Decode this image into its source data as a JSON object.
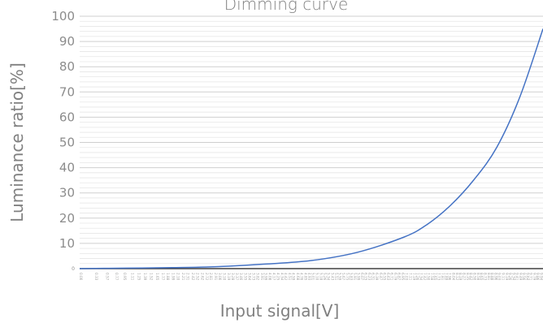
{
  "chart_data": {
    "type": "line",
    "title": "Dimming curve",
    "xlabel": "Input signal[V]",
    "ylabel": "Luminance ratio[%]",
    "ylim": [
      0,
      100
    ],
    "xlim": [
      0.0,
      10.0
    ],
    "y_ticks": [
      "0",
      "10",
      "20",
      "30",
      "40",
      "50",
      "60",
      "70",
      "80",
      "90",
      "100"
    ],
    "x_tick_labels": [
      "0.00",
      "0.33",
      "0.57",
      "0.77",
      "0.95",
      "1.11",
      "1.25",
      "1.39",
      "1.52",
      "1.65",
      "1.77",
      "1.88",
      "1.99",
      "2.10",
      "2.21",
      "2.31",
      "2.42",
      "2.52",
      "2.62",
      "2.72",
      "2.81",
      "2.91",
      "3.00",
      "3.10",
      "3.19",
      "3.28",
      "3.37",
      "3.46",
      "3.55",
      "3.64",
      "3.73",
      "3.82",
      "3.91",
      "3.99",
      "4.08",
      "4.17",
      "4.25",
      "4.34",
      "4.42",
      "4.51",
      "4.59",
      "4.68",
      "4.76",
      "4.85",
      "4.93",
      "5.01",
      "5.10",
      "5.18",
      "5.26",
      "5.34",
      "5.43",
      "5.51",
      "5.59",
      "5.67",
      "5.75",
      "5.83",
      "5.91",
      "5.99",
      "6.07",
      "6.15",
      "6.23",
      "6.31",
      "6.39",
      "6.47",
      "6.55",
      "6.63",
      "6.71",
      "6.79",
      "6.87",
      "6.95",
      "7.03",
      "7.11",
      "7.19",
      "7.26",
      "7.34",
      "7.42",
      "7.50",
      "7.58",
      "7.65",
      "7.73",
      "7.81",
      "7.89",
      "7.96",
      "8.04",
      "8.12",
      "8.19",
      "8.27",
      "8.35",
      "8.42",
      "8.50",
      "8.58",
      "8.65",
      "8.73",
      "8.81",
      "8.88",
      "8.96",
      "9.03",
      "9.11",
      "9.19",
      "9.26",
      "9.34",
      "9.41",
      "9.49",
      "9.56",
      "9.64",
      "9.71",
      "9.79",
      "9.86",
      "9.94",
      "10.00"
    ],
    "grid": "horizontal",
    "series": [
      {
        "color": "#4472c4",
        "x": [
          0.0,
          1.0,
          2.0,
          3.0,
          4.0,
          5.0,
          6.0,
          7.0,
          7.5,
          8.0,
          8.5,
          9.0,
          9.5,
          10.0
        ],
        "y": [
          0.0,
          0.2,
          0.4,
          0.8,
          1.8,
          3.2,
          6.5,
          12.5,
          17.5,
          25.0,
          35.0,
          48.0,
          68.0,
          95.0
        ]
      }
    ]
  }
}
